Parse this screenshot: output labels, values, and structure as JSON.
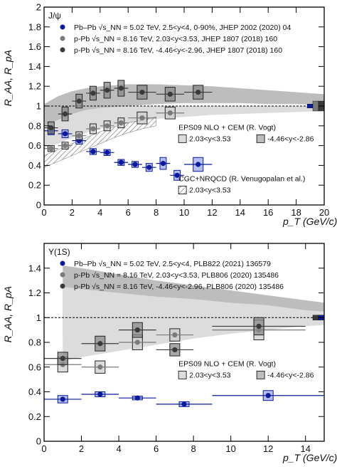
{
  "chart_data": [
    {
      "type": "scatter",
      "label": "J/ψ",
      "xlabel": "p_T (GeV/c)",
      "ylabel": "R_AA, R_pA",
      "xlim": [
        0,
        20
      ],
      "ylim": [
        0,
        2
      ],
      "xticks": [
        0,
        2,
        4,
        6,
        8,
        10,
        12,
        14,
        16,
        18,
        20
      ],
      "yticks": [
        0,
        0.2,
        0.4,
        0.6,
        0.8,
        1,
        1.2,
        1.4,
        1.6,
        1.8,
        2
      ],
      "reference_line": 1,
      "legend_position": "top-left",
      "series": [
        {
          "name": "Pb–Pb √s_NN = 5.02 TeV, 2.5<y<4, 0-90%, JHEP 2002 (2020) 04",
          "color": "#0a1a9a",
          "marker": "circle",
          "x": [
            0.5,
            1.5,
            2.5,
            3.5,
            4.5,
            5.5,
            6.5,
            7.5,
            8.5,
            9.5,
            11
          ],
          "xerr": [
            0.5,
            0.5,
            0.5,
            0.5,
            0.5,
            0.5,
            0.5,
            0.5,
            0.5,
            0.5,
            1
          ],
          "y": [
            0.75,
            0.72,
            0.65,
            0.54,
            0.53,
            0.43,
            0.41,
            0.38,
            0.42,
            0.3,
            0.41
          ],
          "syst": [
            0.04,
            0.04,
            0.035,
            0.03,
            0.03,
            0.03,
            0.03,
            0.04,
            0.06,
            0.05,
            0.07
          ]
        },
        {
          "name": "p-Pb √s_NN = 8.16 TeV, 2.03<y<3.53, JHEP 1807 (2018) 160",
          "color": "#7a7a7a",
          "marker": "circle",
          "x": [
            0.5,
            1.5,
            2.5,
            3.5,
            4.5,
            5.5,
            7,
            9
          ],
          "xerr": [
            0.5,
            0.5,
            0.5,
            0.5,
            0.5,
            0.5,
            1,
            1
          ],
          "y": [
            0.57,
            0.6,
            0.7,
            0.77,
            0.8,
            0.83,
            0.88,
            0.93
          ],
          "syst": [
            0.03,
            0.035,
            0.04,
            0.05,
            0.05,
            0.05,
            0.06,
            0.06
          ]
        },
        {
          "name": "p-Pb √s_NN = 8.16 TeV, -4.46<y<-2.96, JHEP 1807 (2018) 160",
          "color": "#3a3a3a",
          "marker": "circle",
          "x": [
            0.5,
            1.5,
            2.5,
            3.5,
            4.5,
            5.5,
            7,
            9,
            11
          ],
          "xerr": [
            0.5,
            0.5,
            0.5,
            0.5,
            0.5,
            0.5,
            1,
            1,
            1
          ],
          "y": [
            0.78,
            0.92,
            1.05,
            1.13,
            1.16,
            1.18,
            1.14,
            1.12,
            1.14
          ],
          "syst": [
            0.06,
            0.07,
            0.07,
            0.07,
            0.08,
            0.08,
            0.07,
            0.07,
            0.07
          ]
        }
      ],
      "models": [
        {
          "name": "EPS09 NLO + CEM (R. Vogt)",
          "band_labels": [
            "2.03<y<3.53",
            "-4.46<y<-2.86"
          ],
          "forward_band": {
            "x": [
              0,
              1,
              2,
              3,
              4,
              6,
              8,
              10,
              12,
              14,
              16,
              18,
              20
            ],
            "lo": [
              0.58,
              0.62,
              0.68,
              0.73,
              0.77,
              0.83,
              0.87,
              0.89,
              0.91,
              0.92,
              0.93,
              0.94,
              0.95
            ],
            "hi": [
              0.8,
              0.86,
              0.92,
              0.96,
              0.98,
              1.0,
              1.0,
              1.0,
              1.0,
              1.0,
              1.0,
              1.0,
              1.0
            ]
          },
          "backward_band": {
            "x": [
              0,
              1,
              2,
              3,
              4,
              6,
              8,
              10,
              12,
              14,
              16,
              18,
              20
            ],
            "lo": [
              0.62,
              0.72,
              0.82,
              0.9,
              0.95,
              1.0,
              1.02,
              1.03,
              1.03,
              1.03,
              1.02,
              1.02,
              1.01
            ],
            "hi": [
              1.02,
              1.1,
              1.15,
              1.18,
              1.2,
              1.22,
              1.22,
              1.21,
              1.2,
              1.18,
              1.16,
              1.14,
              1.12
            ]
          }
        },
        {
          "name": "CGC+NRQCD (R. Venugopalan et al.)",
          "band_labels": [
            "2.03<y<3.53"
          ],
          "band": {
            "x": [
              0,
              1,
              2,
              3,
              4,
              5,
              6,
              7,
              8
            ],
            "lo": [
              0.38,
              0.44,
              0.5,
              0.56,
              0.62,
              0.68,
              0.73,
              0.77,
              0.8
            ],
            "hi": [
              0.5,
              0.56,
              0.62,
              0.68,
              0.74,
              0.79,
              0.83,
              0.86,
              0.89
            ]
          }
        }
      ],
      "global_uncertainties": [
        {
          "color": "#0a1a9a",
          "value": 0.02
        },
        {
          "color": "#7a7a7a",
          "value": 0.05
        },
        {
          "color": "#3a3a3a",
          "value": 0.05
        }
      ]
    },
    {
      "type": "scatter",
      "label": "Υ(1S)",
      "xlabel": "p_T (GeV/c)",
      "ylabel": "R_AA, R_pA",
      "xlim": [
        0,
        15
      ],
      "ylim": [
        0,
        1.6
      ],
      "xticks": [
        0,
        2,
        4,
        6,
        8,
        10,
        12,
        14
      ],
      "yticks": [
        0,
        0.2,
        0.4,
        0.6,
        0.8,
        1,
        1.2,
        1.4
      ],
      "reference_line": 1,
      "legend_position": "top-left",
      "series": [
        {
          "name": "Pb–Pb √s_NN = 5.02 TeV, 2.5<y<4, PLB822 (2021) 136579",
          "color": "#0a1a9a",
          "marker": "circle",
          "x": [
            1,
            3,
            5,
            7.5,
            12
          ],
          "xerr": [
            1,
            1,
            1,
            1.5,
            3
          ],
          "y": [
            0.34,
            0.38,
            0.35,
            0.3,
            0.37
          ],
          "syst": [
            0.03,
            0.02,
            0.015,
            0.02,
            0.04
          ]
        },
        {
          "name": "p-Pb √s_NN = 8.16 TeV, 2.03<y<3.53, PLB806 (2020) 135486",
          "color": "#7a7a7a",
          "marker": "circle",
          "x": [
            1,
            3,
            5,
            7,
            11.5
          ],
          "xerr": [
            1,
            1,
            1,
            1,
            2.5
          ],
          "y": [
            0.62,
            0.6,
            0.8,
            0.86,
            0.9
          ],
          "syst": [
            0.06,
            0.05,
            0.06,
            0.05,
            0.08
          ]
        },
        {
          "name": "p-Pb √s_NN = 8.16 TeV, -4.46<y<-2.96, PLB806 (2020) 135486",
          "color": "#3a3a3a",
          "marker": "circle",
          "x": [
            1,
            3,
            5,
            7,
            11.5
          ],
          "xerr": [
            1,
            1,
            1,
            1,
            2.5
          ],
          "y": [
            0.67,
            0.79,
            0.9,
            0.74,
            0.93
          ],
          "syst": [
            0.05,
            0.06,
            0.06,
            0.05,
            0.07
          ]
        }
      ],
      "models": [
        {
          "name": "EPS09 NLO + CEM (R. Vogt)",
          "band_labels": [
            "2.03<y<3.53",
            "-4.46<y<-2.86"
          ],
          "forward_band": {
            "x": [
              1,
              2,
              4,
              6,
              8,
              10,
              12,
              14,
              15
            ],
            "lo": [
              0.65,
              0.68,
              0.73,
              0.78,
              0.83,
              0.87,
              0.9,
              0.93,
              0.94
            ],
            "hi": [
              1.25,
              1.23,
              1.2,
              1.17,
              1.15,
              1.12,
              1.1,
              1.06,
              1.05
            ]
          },
          "backward_band": {
            "x": [
              1,
              2,
              4,
              6,
              8,
              10,
              12,
              14,
              15
            ],
            "lo": [
              0.82,
              0.85,
              0.9,
              0.95,
              0.98,
              1.0,
              1.01,
              1.02,
              1.02
            ],
            "hi": [
              1.42,
              1.4,
              1.35,
              1.3,
              1.26,
              1.22,
              1.18,
              1.14,
              1.12
            ]
          }
        }
      ],
      "global_uncertainties": [
        {
          "color": "#3a3a3a",
          "value": 0.02
        },
        {
          "color": "#0a1a9a",
          "value": 0.02
        }
      ]
    }
  ]
}
